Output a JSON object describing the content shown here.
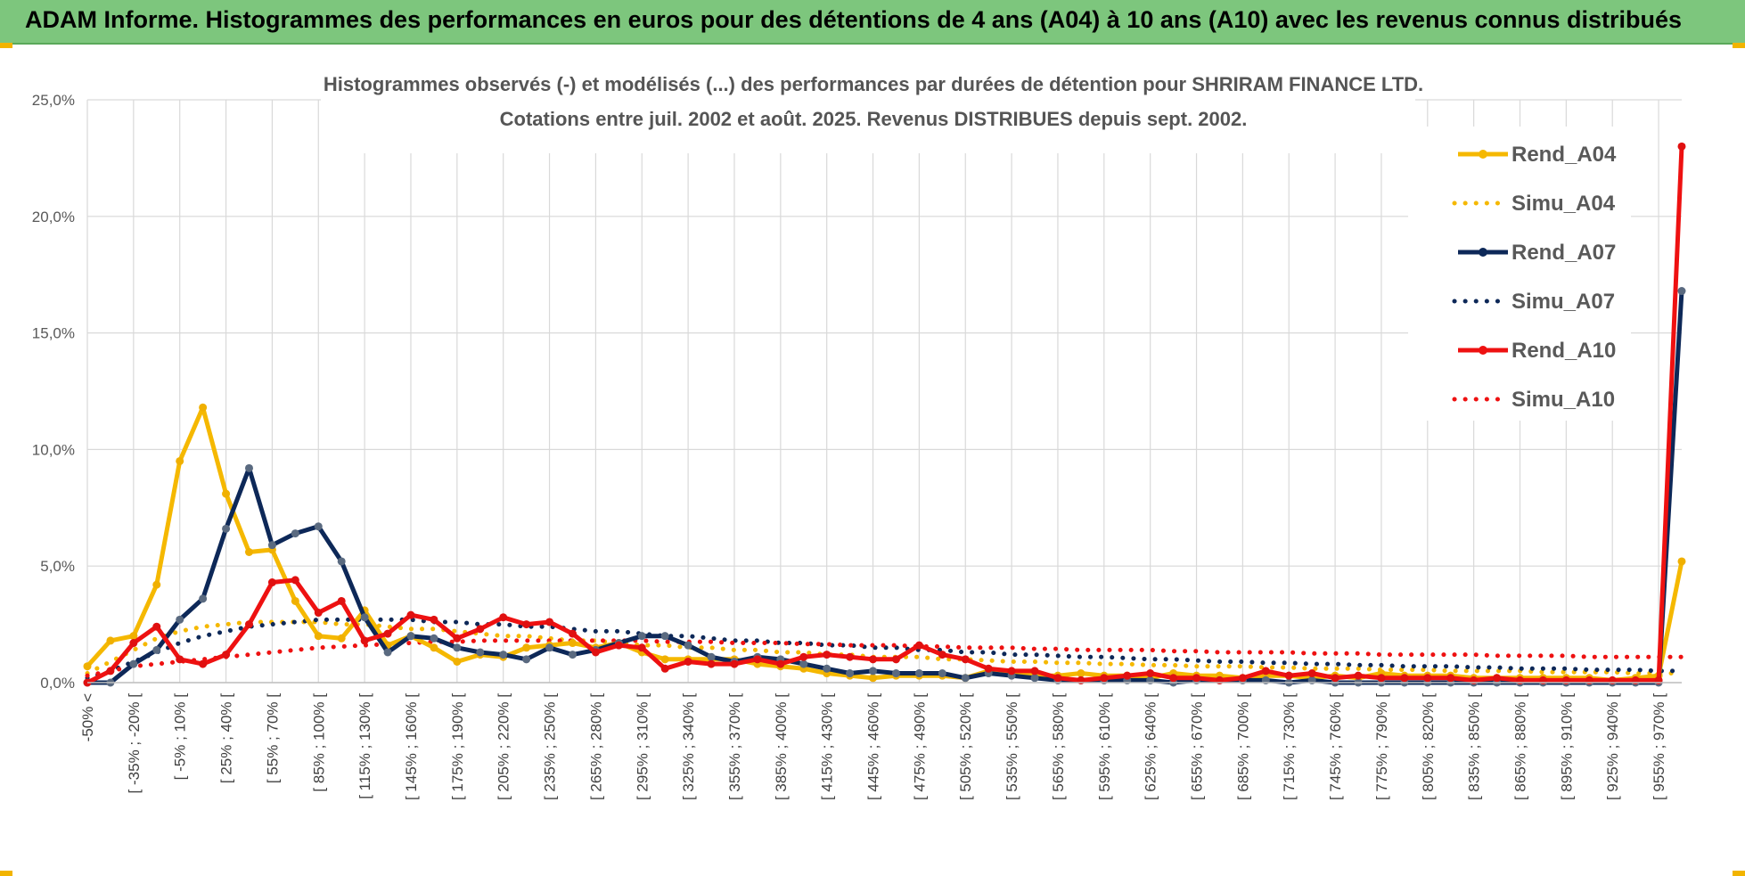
{
  "banner": {
    "title": "ADAM Informe. Histogrammes des performances en euros pour des détentions de 4 ans (A04) à 10 ans (A10) avec les revenus connus distribués"
  },
  "colors": {
    "banner_bg": "#7dc67d",
    "A04": "#f5b800",
    "A07": "#0d2858",
    "A10": "#ee1111",
    "grid": "#d9d9d9"
  },
  "chart_data": {
    "type": "line",
    "title": "Histogrammes observés (-) et modélisés (...) des performances par durées de détention pour SHRIRAM FINANCE LTD.",
    "subtitle": "Cotations entre juil. 2002 et août. 2025. Revenus DISTRIBUES depuis sept. 2002.",
    "grid": true,
    "legend_position": "right",
    "ylim": [
      0,
      25
    ],
    "yticks": [
      "0,0%",
      "5,0%",
      "10,0%",
      "15,0%",
      "20,0%",
      "25,0%"
    ],
    "x_labels_shown": [
      "-50% <",
      "[ -35% ; -20% [",
      "[ -5% ; 10% [",
      "[ 25% ; 40% [",
      "[ 55% ; 70% [",
      "[ 85% ; 100% [",
      "[ 115% ; 130% [",
      "[ 145% ; 160% [",
      "[ 175% ; 190% [",
      "[ 205% ; 220% [",
      "[ 235% ; 250% [",
      "[ 265% ; 280% [",
      "[ 295% ; 310% [",
      "[ 325% ; 340% [",
      "[ 355% ; 370% [",
      "[ 385% ; 400% [",
      "[ 415% ; 430% [",
      "[ 445% ; 460% [",
      "[ 475% ; 490% [",
      "[ 505% ; 520% [",
      "[ 535% ; 550% [",
      "[ 565% ; 580% [",
      "[ 595% ; 610% [",
      "[ 625% ; 640% [",
      "[ 655% ; 670% [",
      "[ 685% ; 700% [",
      "[ 715% ; 730% [",
      "[ 745% ; 760% [",
      "[ 775% ; 790% [",
      "[ 805% ; 820% [",
      "[ 835% ; 850% [",
      "[ 865% ; 880% [",
      "[ 895% ; 910% [",
      "[ 925% ; 940% [",
      "[ 955% ; 970% ["
    ],
    "category_count": 70,
    "series": [
      {
        "name": "Rend_A04",
        "kind": "observed",
        "color": "#f5b800",
        "values": [
          0.7,
          1.8,
          2.0,
          4.2,
          9.5,
          11.8,
          8.1,
          5.6,
          5.7,
          3.5,
          2.0,
          1.9,
          3.1,
          1.6,
          2.0,
          1.5,
          0.9,
          1.2,
          1.1,
          1.5,
          1.6,
          1.7,
          1.5,
          1.7,
          1.3,
          1.0,
          1.0,
          1.0,
          1.0,
          0.8,
          0.7,
          0.6,
          0.4,
          0.3,
          0.2,
          0.3,
          0.3,
          0.3,
          0.2,
          0.5,
          0.4,
          0.3,
          0.3,
          0.4,
          0.3,
          0.3,
          0.2,
          0.4,
          0.3,
          0.3,
          0.2,
          0.3,
          0.3,
          0.2,
          0.3,
          0.2,
          0.4,
          0.3,
          0.3,
          0.3,
          0.2,
          0.2,
          0.2,
          0.2,
          0.2,
          0.2,
          0.1,
          0.2,
          0.3,
          5.2
        ]
      },
      {
        "name": "Simu_A04",
        "kind": "modeled",
        "color": "#f5b800",
        "values": [
          0.4,
          0.9,
          1.4,
          1.9,
          2.2,
          2.4,
          2.5,
          2.6,
          2.6,
          2.6,
          2.6,
          2.5,
          2.5,
          2.4,
          2.3,
          2.3,
          2.2,
          2.1,
          2.0,
          2.0,
          1.9,
          1.8,
          1.8,
          1.7,
          1.6,
          1.6,
          1.5,
          1.5,
          1.4,
          1.4,
          1.3,
          1.3,
          1.2,
          1.2,
          1.1,
          1.1,
          1.1,
          1.0,
          1.0,
          0.95,
          0.9,
          0.9,
          0.85,
          0.85,
          0.8,
          0.8,
          0.75,
          0.75,
          0.7,
          0.7,
          0.7,
          0.65,
          0.65,
          0.6,
          0.6,
          0.6,
          0.55,
          0.55,
          0.55,
          0.5,
          0.5,
          0.5,
          0.5,
          0.45,
          0.45,
          0.45,
          0.45,
          0.4,
          0.4,
          0.4
        ]
      },
      {
        "name": "Rend_A07",
        "kind": "observed",
        "color": "#0d2858",
        "values": [
          0.0,
          0.0,
          0.8,
          1.4,
          2.7,
          3.6,
          6.6,
          9.2,
          5.9,
          6.4,
          6.7,
          5.2,
          2.8,
          1.3,
          2.0,
          1.9,
          1.5,
          1.3,
          1.2,
          1.0,
          1.5,
          1.2,
          1.4,
          1.7,
          2.0,
          2.0,
          1.6,
          1.1,
          0.9,
          1.1,
          1.0,
          0.8,
          0.6,
          0.4,
          0.5,
          0.4,
          0.4,
          0.4,
          0.2,
          0.4,
          0.3,
          0.2,
          0.1,
          0.1,
          0.1,
          0.1,
          0.1,
          0.0,
          0.1,
          0.1,
          0.1,
          0.1,
          0.0,
          0.1,
          0.0,
          0.0,
          0.0,
          0.0,
          0.0,
          0.0,
          0.0,
          0.0,
          0.0,
          0.0,
          0.0,
          0.0,
          0.0,
          0.0,
          0.0,
          16.8
        ]
      },
      {
        "name": "Simu_A07",
        "kind": "modeled",
        "color": "#0d2858",
        "values": [
          0.2,
          0.5,
          0.9,
          1.3,
          1.7,
          2.0,
          2.2,
          2.4,
          2.5,
          2.6,
          2.7,
          2.7,
          2.7,
          2.7,
          2.7,
          2.6,
          2.6,
          2.5,
          2.5,
          2.4,
          2.4,
          2.3,
          2.2,
          2.2,
          2.1,
          2.0,
          2.0,
          1.9,
          1.8,
          1.8,
          1.7,
          1.7,
          1.6,
          1.6,
          1.5,
          1.5,
          1.4,
          1.4,
          1.3,
          1.3,
          1.2,
          1.2,
          1.15,
          1.1,
          1.1,
          1.05,
          1.0,
          1.0,
          0.95,
          0.9,
          0.9,
          0.85,
          0.85,
          0.8,
          0.8,
          0.75,
          0.75,
          0.7,
          0.7,
          0.7,
          0.65,
          0.65,
          0.6,
          0.6,
          0.6,
          0.55,
          0.55,
          0.55,
          0.5,
          0.5
        ]
      },
      {
        "name": "Rend_A10",
        "kind": "observed",
        "color": "#ee1111",
        "values": [
          0.0,
          0.5,
          1.7,
          2.4,
          1.0,
          0.8,
          1.2,
          2.5,
          4.3,
          4.4,
          3.0,
          3.5,
          1.8,
          2.1,
          2.9,
          2.7,
          1.9,
          2.3,
          2.8,
          2.5,
          2.6,
          2.1,
          1.3,
          1.6,
          1.5,
          0.6,
          0.9,
          0.8,
          0.8,
          1.0,
          0.8,
          1.1,
          1.2,
          1.1,
          1.0,
          1.0,
          1.6,
          1.2,
          1.0,
          0.6,
          0.5,
          0.5,
          0.2,
          0.1,
          0.2,
          0.3,
          0.4,
          0.2,
          0.2,
          0.1,
          0.2,
          0.5,
          0.3,
          0.4,
          0.2,
          0.3,
          0.2,
          0.2,
          0.2,
          0.2,
          0.1,
          0.2,
          0.1,
          0.1,
          0.1,
          0.1,
          0.1,
          0.1,
          0.1,
          23.0
        ]
      },
      {
        "name": "Simu_A10",
        "kind": "modeled",
        "color": "#ee1111",
        "values": [
          0.3,
          0.5,
          0.7,
          0.8,
          0.9,
          1.0,
          1.1,
          1.2,
          1.3,
          1.4,
          1.5,
          1.55,
          1.6,
          1.65,
          1.7,
          1.75,
          1.75,
          1.8,
          1.8,
          1.8,
          1.8,
          1.8,
          1.8,
          1.8,
          1.8,
          1.75,
          1.75,
          1.75,
          1.7,
          1.7,
          1.7,
          1.65,
          1.65,
          1.6,
          1.6,
          1.6,
          1.55,
          1.55,
          1.5,
          1.5,
          1.5,
          1.45,
          1.45,
          1.4,
          1.4,
          1.4,
          1.4,
          1.35,
          1.35,
          1.3,
          1.3,
          1.3,
          1.3,
          1.25,
          1.25,
          1.25,
          1.2,
          1.2,
          1.2,
          1.2,
          1.2,
          1.15,
          1.15,
          1.15,
          1.15,
          1.1,
          1.1,
          1.1,
          1.1,
          1.1
        ]
      }
    ]
  }
}
